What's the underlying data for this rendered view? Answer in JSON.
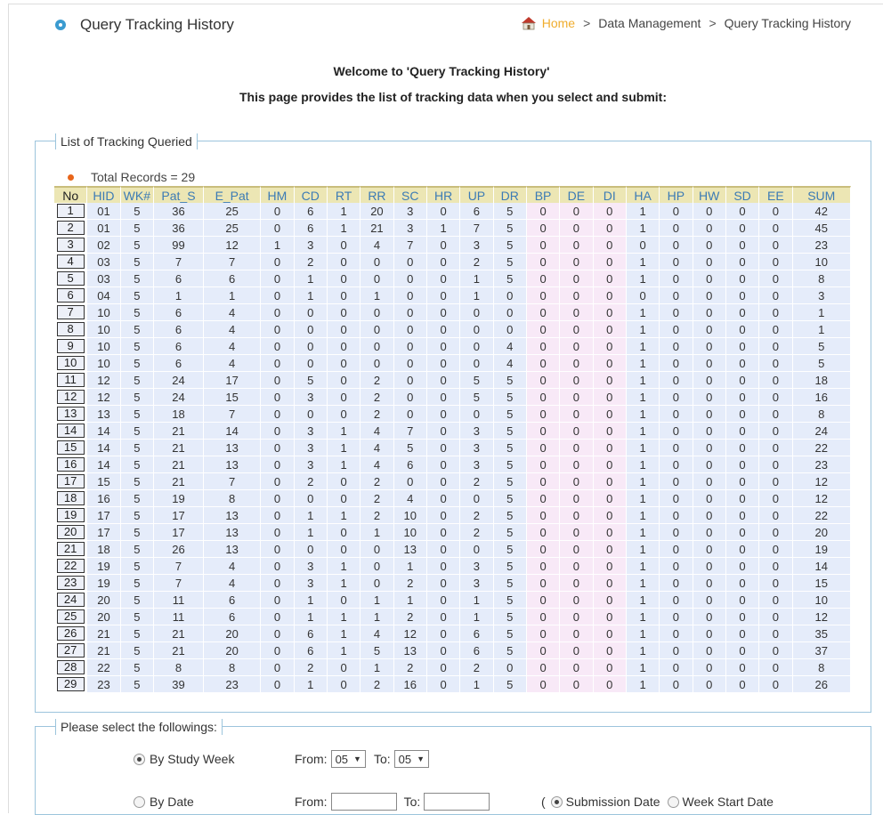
{
  "header": {
    "title": "Query Tracking History",
    "breadcrumb": {
      "home": "Home",
      "sep": ">",
      "section": "Data Management",
      "current": "Query Tracking History"
    }
  },
  "intro": {
    "welcome": "Welcome to 'Query Tracking History'",
    "description": "This page provides the list of tracking data when you select and submit:"
  },
  "tracking": {
    "legend": "List of Tracking Queried",
    "total": "Total Records = 29",
    "columns": [
      "No",
      "HID",
      "WK#",
      "Pat_S",
      "E_Pat",
      "HM",
      "CD",
      "RT",
      "RR",
      "SC",
      "HR",
      "UP",
      "DR",
      "BP",
      "DE",
      "DI",
      "HA",
      "HP",
      "HW",
      "SD",
      "EE",
      "SUM"
    ],
    "rows": [
      [
        "1",
        "01",
        "5",
        "36",
        "25",
        "0",
        "6",
        "1",
        "20",
        "3",
        "0",
        "6",
        "5",
        "0",
        "0",
        "0",
        "1",
        "0",
        "0",
        "0",
        "0",
        "42"
      ],
      [
        "2",
        "01",
        "5",
        "36",
        "25",
        "0",
        "6",
        "1",
        "21",
        "3",
        "1",
        "7",
        "5",
        "0",
        "0",
        "0",
        "1",
        "0",
        "0",
        "0",
        "0",
        "45"
      ],
      [
        "3",
        "02",
        "5",
        "99",
        "12",
        "1",
        "3",
        "0",
        "4",
        "7",
        "0",
        "3",
        "5",
        "0",
        "0",
        "0",
        "0",
        "0",
        "0",
        "0",
        "0",
        "23"
      ],
      [
        "4",
        "03",
        "5",
        "7",
        "7",
        "0",
        "2",
        "0",
        "0",
        "0",
        "0",
        "2",
        "5",
        "0",
        "0",
        "0",
        "1",
        "0",
        "0",
        "0",
        "0",
        "10"
      ],
      [
        "5",
        "03",
        "5",
        "6",
        "6",
        "0",
        "1",
        "0",
        "0",
        "0",
        "0",
        "1",
        "5",
        "0",
        "0",
        "0",
        "1",
        "0",
        "0",
        "0",
        "0",
        "8"
      ],
      [
        "6",
        "04",
        "5",
        "1",
        "1",
        "0",
        "1",
        "0",
        "1",
        "0",
        "0",
        "1",
        "0",
        "0",
        "0",
        "0",
        "0",
        "0",
        "0",
        "0",
        "0",
        "3"
      ],
      [
        "7",
        "10",
        "5",
        "6",
        "4",
        "0",
        "0",
        "0",
        "0",
        "0",
        "0",
        "0",
        "0",
        "0",
        "0",
        "0",
        "1",
        "0",
        "0",
        "0",
        "0",
        "1"
      ],
      [
        "8",
        "10",
        "5",
        "6",
        "4",
        "0",
        "0",
        "0",
        "0",
        "0",
        "0",
        "0",
        "0",
        "0",
        "0",
        "0",
        "1",
        "0",
        "0",
        "0",
        "0",
        "1"
      ],
      [
        "9",
        "10",
        "5",
        "6",
        "4",
        "0",
        "0",
        "0",
        "0",
        "0",
        "0",
        "0",
        "4",
        "0",
        "0",
        "0",
        "1",
        "0",
        "0",
        "0",
        "0",
        "5"
      ],
      [
        "10",
        "10",
        "5",
        "6",
        "4",
        "0",
        "0",
        "0",
        "0",
        "0",
        "0",
        "0",
        "4",
        "0",
        "0",
        "0",
        "1",
        "0",
        "0",
        "0",
        "0",
        "5"
      ],
      [
        "11",
        "12",
        "5",
        "24",
        "17",
        "0",
        "5",
        "0",
        "2",
        "0",
        "0",
        "5",
        "5",
        "0",
        "0",
        "0",
        "1",
        "0",
        "0",
        "0",
        "0",
        "18"
      ],
      [
        "12",
        "12",
        "5",
        "24",
        "15",
        "0",
        "3",
        "0",
        "2",
        "0",
        "0",
        "5",
        "5",
        "0",
        "0",
        "0",
        "1",
        "0",
        "0",
        "0",
        "0",
        "16"
      ],
      [
        "13",
        "13",
        "5",
        "18",
        "7",
        "0",
        "0",
        "0",
        "2",
        "0",
        "0",
        "0",
        "5",
        "0",
        "0",
        "0",
        "1",
        "0",
        "0",
        "0",
        "0",
        "8"
      ],
      [
        "14",
        "14",
        "5",
        "21",
        "14",
        "0",
        "3",
        "1",
        "4",
        "7",
        "0",
        "3",
        "5",
        "0",
        "0",
        "0",
        "1",
        "0",
        "0",
        "0",
        "0",
        "24"
      ],
      [
        "15",
        "14",
        "5",
        "21",
        "13",
        "0",
        "3",
        "1",
        "4",
        "5",
        "0",
        "3",
        "5",
        "0",
        "0",
        "0",
        "1",
        "0",
        "0",
        "0",
        "0",
        "22"
      ],
      [
        "16",
        "14",
        "5",
        "21",
        "13",
        "0",
        "3",
        "1",
        "4",
        "6",
        "0",
        "3",
        "5",
        "0",
        "0",
        "0",
        "1",
        "0",
        "0",
        "0",
        "0",
        "23"
      ],
      [
        "17",
        "15",
        "5",
        "21",
        "7",
        "0",
        "2",
        "0",
        "2",
        "0",
        "0",
        "2",
        "5",
        "0",
        "0",
        "0",
        "1",
        "0",
        "0",
        "0",
        "0",
        "12"
      ],
      [
        "18",
        "16",
        "5",
        "19",
        "8",
        "0",
        "0",
        "0",
        "2",
        "4",
        "0",
        "0",
        "5",
        "0",
        "0",
        "0",
        "1",
        "0",
        "0",
        "0",
        "0",
        "12"
      ],
      [
        "19",
        "17",
        "5",
        "17",
        "13",
        "0",
        "1",
        "1",
        "2",
        "10",
        "0",
        "2",
        "5",
        "0",
        "0",
        "0",
        "1",
        "0",
        "0",
        "0",
        "0",
        "22"
      ],
      [
        "20",
        "17",
        "5",
        "17",
        "13",
        "0",
        "1",
        "0",
        "1",
        "10",
        "0",
        "2",
        "5",
        "0",
        "0",
        "0",
        "1",
        "0",
        "0",
        "0",
        "0",
        "20"
      ],
      [
        "21",
        "18",
        "5",
        "26",
        "13",
        "0",
        "0",
        "0",
        "0",
        "13",
        "0",
        "0",
        "5",
        "0",
        "0",
        "0",
        "1",
        "0",
        "0",
        "0",
        "0",
        "19"
      ],
      [
        "22",
        "19",
        "5",
        "7",
        "4",
        "0",
        "3",
        "1",
        "0",
        "1",
        "0",
        "3",
        "5",
        "0",
        "0",
        "0",
        "1",
        "0",
        "0",
        "0",
        "0",
        "14"
      ],
      [
        "23",
        "19",
        "5",
        "7",
        "4",
        "0",
        "3",
        "1",
        "0",
        "2",
        "0",
        "3",
        "5",
        "0",
        "0",
        "0",
        "1",
        "0",
        "0",
        "0",
        "0",
        "15"
      ],
      [
        "24",
        "20",
        "5",
        "11",
        "6",
        "0",
        "1",
        "0",
        "1",
        "1",
        "0",
        "1",
        "5",
        "0",
        "0",
        "0",
        "1",
        "0",
        "0",
        "0",
        "0",
        "10"
      ],
      [
        "25",
        "20",
        "5",
        "11",
        "6",
        "0",
        "1",
        "1",
        "1",
        "2",
        "0",
        "1",
        "5",
        "0",
        "0",
        "0",
        "1",
        "0",
        "0",
        "0",
        "0",
        "12"
      ],
      [
        "26",
        "21",
        "5",
        "21",
        "20",
        "0",
        "6",
        "1",
        "4",
        "12",
        "0",
        "6",
        "5",
        "0",
        "0",
        "0",
        "1",
        "0",
        "0",
        "0",
        "0",
        "35"
      ],
      [
        "27",
        "21",
        "5",
        "21",
        "20",
        "0",
        "6",
        "1",
        "5",
        "13",
        "0",
        "6",
        "5",
        "0",
        "0",
        "0",
        "1",
        "0",
        "0",
        "0",
        "0",
        "37"
      ],
      [
        "28",
        "22",
        "5",
        "8",
        "8",
        "0",
        "2",
        "0",
        "1",
        "2",
        "0",
        "2",
        "0",
        "0",
        "0",
        "0",
        "1",
        "0",
        "0",
        "0",
        "0",
        "8"
      ],
      [
        "29",
        "23",
        "5",
        "39",
        "23",
        "0",
        "1",
        "0",
        "2",
        "16",
        "0",
        "1",
        "5",
        "0",
        "0",
        "0",
        "1",
        "0",
        "0",
        "0",
        "0",
        "26"
      ]
    ]
  },
  "select_panel": {
    "legend": "Please select the followings:",
    "by_week_label": "By Study Week",
    "from_label": "From:",
    "to_label": "To:",
    "week_from": "05",
    "week_to": "05",
    "by_date_label": "By Date",
    "submission_date_label": "Submission Date",
    "week_start_date_label": "Week Start Date"
  }
}
